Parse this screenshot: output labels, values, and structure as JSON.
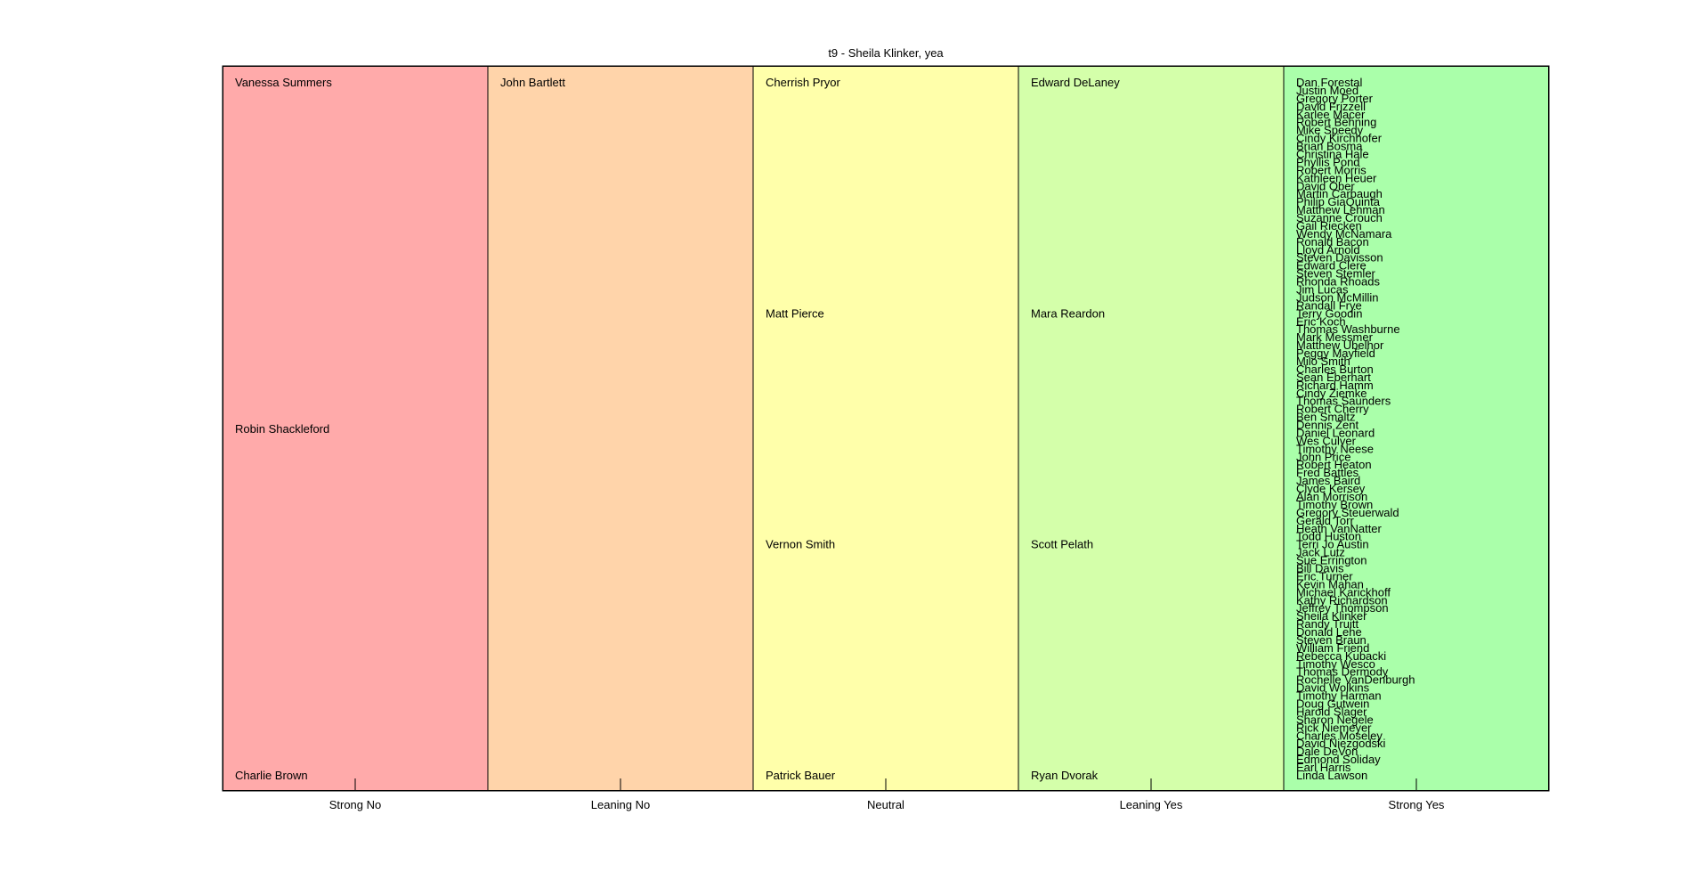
{
  "chart_data": {
    "type": "table",
    "title": "t9 - Sheila Klinker, yea",
    "categories": [
      "Strong No",
      "Leaning No",
      "Neutral",
      "Leaning Yes",
      "Strong Yes"
    ],
    "colors": [
      "#ffaaaa",
      "#ffd4aa",
      "#ffffaa",
      "#d4ffaa",
      "#aaffaa"
    ],
    "columns": [
      {
        "category": "Strong No",
        "names": [
          "Vanessa Summers",
          "Robin Shackleford",
          "Charlie Brown"
        ]
      },
      {
        "category": "Leaning No",
        "names": [
          "John Bartlett"
        ]
      },
      {
        "category": "Neutral",
        "names": [
          "Cherrish Pryor",
          "Matt Pierce",
          "Vernon Smith",
          "Patrick Bauer"
        ]
      },
      {
        "category": "Leaning Yes",
        "names": [
          "Edward DeLaney",
          "Mara Reardon",
          "Scott Pelath",
          "Ryan Dvorak"
        ]
      },
      {
        "category": "Strong Yes",
        "names": [
          "Dan Forestal",
          "Justin Moed",
          "Gregory Porter",
          "David Frizzell",
          "Karlee Macer",
          "Robert Behning",
          "Mike Speedy",
          "Cindy Kirchhofer",
          "Brian Bosma",
          "Christina Hale",
          "Phyllis Pond",
          "Robert Morris",
          "Kathleen Heuer",
          "David Ober",
          "Martin Carbaugh",
          "Philip GiaQuinta",
          "Matthew Lehman",
          "Suzanne Crouch",
          "Gail Riecken",
          "Wendy McNamara",
          "Ronald Bacon",
          "Lloyd Arnold",
          "Steven Davisson",
          "Edward Clere",
          "Steven Stemler",
          "Rhonda Rhoads",
          "Jim Lucas",
          "Judson McMillin",
          "Randall Frye",
          "Terry Goodin",
          "Eric Koch",
          "Thomas Washburne",
          "Mark Messmer",
          "Matthew Ubelhor",
          "Peggy Mayfield",
          "Milo Smith",
          "Charles Burton",
          "Sean Eberhart",
          "Richard Hamm",
          "Cindy Ziemke",
          "Thomas Saunders",
          "Robert Cherry",
          "Ben Smaltz",
          "Dennis Zent",
          "Daniel Leonard",
          "Wes Culver",
          "Timothy Neese",
          "John Price",
          "Robert Heaton",
          "Fred Battles",
          "James Baird",
          "Clyde Kersey",
          "Alan Morrison",
          "Timothy Brown",
          "Gregory Steuerwald",
          "Gerald Torr",
          "Heath VanNatter",
          "Todd Huston",
          "Terri Jo Austin",
          "Jack Lutz",
          "Sue Errington",
          "Bill Davis",
          "Eric Turner",
          "Kevin Mahan",
          "Michael Karickhoff",
          "Kathy Richardson",
          "Jeffrey Thompson",
          "Sheila Klinker",
          "Randy Truitt",
          "Donald Lehe",
          "Steven Braun",
          "William Friend",
          "Rebecca Kubacki",
          "Timothy Wesco",
          "Thomas Dermody",
          "Rochelle VanDenburgh",
          "David Wolkins",
          "Timothy Harman",
          "Doug Gutwein",
          "Harold Slager",
          "Sharon Negele",
          "Rick Niemeyer",
          "Charles Moseley",
          "David Niezgodski",
          "Dale DeVon",
          "Edmond Soliday",
          "Earl Harris",
          "Linda Lawson"
        ]
      }
    ],
    "grid": false,
    "legend": "none"
  }
}
